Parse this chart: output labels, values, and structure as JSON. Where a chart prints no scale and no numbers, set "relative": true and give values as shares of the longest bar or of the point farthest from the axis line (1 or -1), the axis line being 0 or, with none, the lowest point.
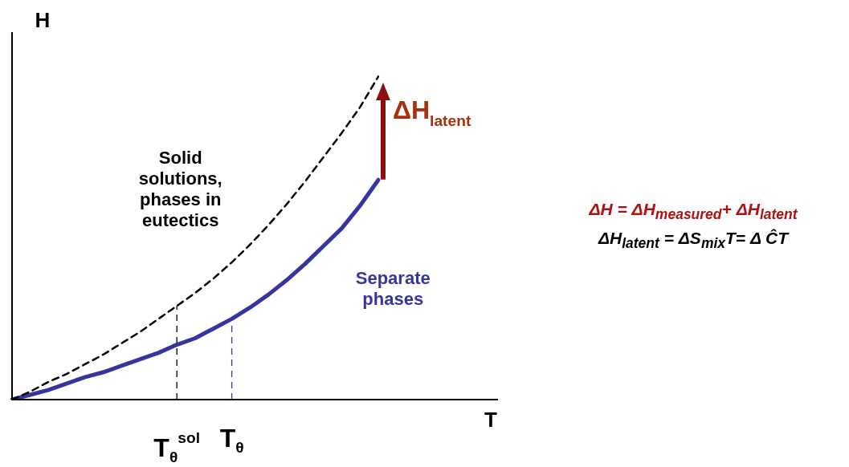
{
  "chart_data": {
    "type": "line",
    "relative": true,
    "ylabel": "H",
    "xlabel": "T",
    "categories": [
      null,
      null,
      null,
      null,
      null,
      null,
      null,
      null,
      null,
      "T$_{θ}$$^{sol}$",
      null,
      null,
      "T$_{θ}$",
      null,
      null,
      null,
      null,
      null,
      null,
      null,
      null
    ],
    "series": [
      {
        "name": "Solid solutions, phases in eutectics",
        "color": "#000000",
        "line_style": "dashed",
        "values": [
          0,
          0.025,
          0.055,
          0.08,
          0.11,
          0.14,
          0.175,
          0.21,
          0.25,
          0.29,
          0.33,
          0.375,
          0.425,
          0.48,
          0.54,
          0.605,
          0.675,
          0.75,
          0.825,
          0.905,
          1
        ]
      },
      {
        "name": "Separate phases",
        "color": "#3535a0",
        "line_style": "solid",
        "values": [
          0,
          0.015,
          0.03,
          0.05,
          0.07,
          0.085,
          0.105,
          0.125,
          0.145,
          0.17,
          0.19,
          0.22,
          0.25,
          0.285,
          0.325,
          0.37,
          0.42,
          0.475,
          0.53,
          0.6,
          0.68
        ]
      }
    ],
    "ref_lines": [
      {
        "axis": "x",
        "value": "T$_{θ}$$^{sol}$",
        "color": "#000000",
        "line_style": "dashed"
      },
      {
        "axis": "x",
        "value": "T$_{θ}$",
        "color": "#3535a0",
        "line_style": "dashed"
      }
    ],
    "annotations": [
      "ΔH$_{latent}$",
      "ΔH = ΔH$_{measured}$+ ΔH$_{latent}$",
      "ΔH$_{latent}$ = ΔS$_{mix}$T= Δ ĈT"
    ],
    "legend": false,
    "grid": false,
    "marker": "none"
  }
}
